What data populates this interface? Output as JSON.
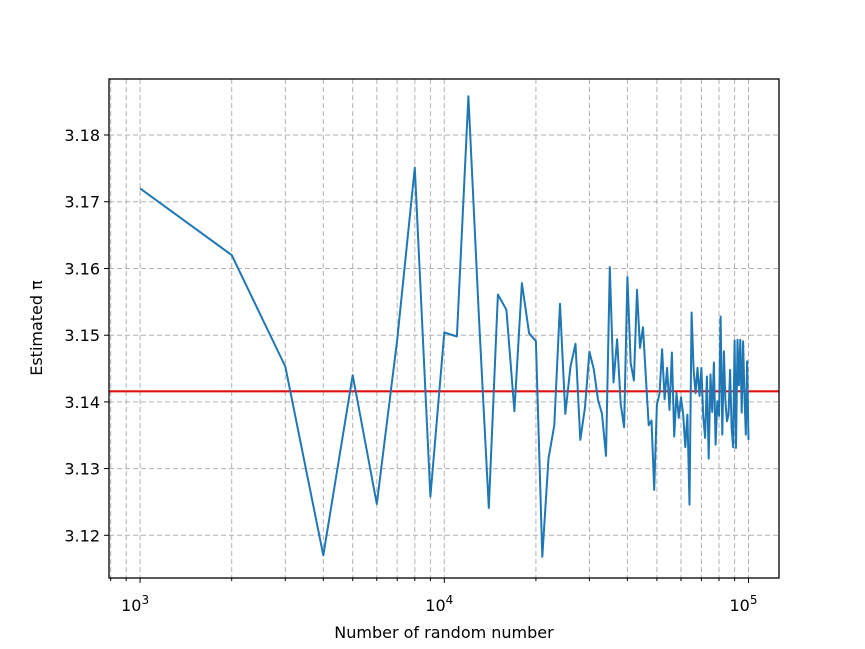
{
  "chart_data": {
    "type": "line",
    "title": "",
    "xlabel": "Number of random number",
    "ylabel": "Estimated π",
    "xscale": "log",
    "xlim": [
      790,
      126000
    ],
    "ylim": [
      3.1136,
      3.1884
    ],
    "x_major_ticks": [
      1000,
      10000,
      100000
    ],
    "x_major_tick_labels": [
      {
        "base": "10",
        "exp": "3"
      },
      {
        "base": "10",
        "exp": "4"
      },
      {
        "base": "10",
        "exp": "5"
      }
    ],
    "y_ticks": [
      3.12,
      3.13,
      3.14,
      3.15,
      3.16,
      3.17,
      3.18
    ],
    "y_tick_labels": [
      "3.12",
      "3.13",
      "3.14",
      "3.15",
      "3.16",
      "3.17",
      "3.18"
    ],
    "grid": true,
    "reference_line": {
      "y": 3.14159,
      "color": "#e01010"
    },
    "series": [
      {
        "color": "#1f77b4",
        "x": [
          1000,
          2000,
          3000,
          4000,
          5000,
          6000,
          7000,
          8000,
          9000,
          10000,
          11000,
          12000,
          13000,
          14000,
          15000,
          16000,
          17000,
          18000,
          19000,
          20000,
          21000,
          22000,
          23000,
          24000,
          25000,
          26000,
          27000,
          28000,
          29000,
          30000,
          31000,
          32000,
          33000,
          34000,
          35000,
          36000,
          37000,
          38000,
          39000,
          40000,
          41000,
          42000,
          43000,
          44000,
          45000,
          46000,
          47000,
          48000,
          49000,
          50000,
          51000,
          52000,
          53000,
          54000,
          55000,
          56000,
          57000,
          58000,
          59000,
          60000,
          61000,
          62000,
          63000,
          64000,
          65000,
          66000,
          67000,
          68000,
          69000,
          70000,
          71000,
          72000,
          73000,
          74000,
          75000,
          76000,
          77000,
          78000,
          79000,
          80000,
          81000,
          82000,
          83000,
          84000,
          85000,
          86000,
          87000,
          88000,
          89000,
          90000,
          91000,
          92000,
          93000,
          94000,
          95000,
          96000,
          97000,
          98000,
          99000,
          100000
        ],
        "y": [
          3.172,
          3.162,
          3.1453,
          3.117,
          3.144,
          3.1247,
          3.1493,
          3.1751,
          3.1258,
          3.1504,
          3.1498,
          3.1858,
          3.1525,
          3.1241,
          3.1561,
          3.1538,
          3.1386,
          3.1578,
          3.1503,
          3.1491,
          3.1168,
          3.1315,
          3.1365,
          3.1547,
          3.1382,
          3.1453,
          3.1487,
          3.1343,
          3.1392,
          3.1475,
          3.1449,
          3.1403,
          3.1382,
          3.1319,
          3.1602,
          3.1429,
          3.1494,
          3.1397,
          3.1362,
          3.1587,
          3.1458,
          3.1432,
          3.1568,
          3.1481,
          3.1512,
          3.1436,
          3.1365,
          3.1372,
          3.1268,
          3.1396,
          3.1412,
          3.1479,
          3.1404,
          3.1451,
          3.1388,
          3.1474,
          3.1348,
          3.1413,
          3.1376,
          3.1407,
          3.1381,
          3.1332,
          3.1381,
          3.1246,
          3.1534,
          3.1448,
          3.1413,
          3.1451,
          3.1409,
          3.1451,
          3.1379,
          3.1346,
          3.1438,
          3.1315,
          3.1441,
          3.1385,
          3.1459,
          3.1336,
          3.1401,
          3.1379,
          3.1528,
          3.1351,
          3.1476,
          3.1401,
          3.1371,
          3.1381,
          3.1448,
          3.1361,
          3.1332,
          3.1492,
          3.1331,
          3.1493,
          3.1425,
          3.1493,
          3.1384,
          3.1491,
          3.1413,
          3.1351,
          3.1461,
          3.1343
        ]
      }
    ]
  }
}
